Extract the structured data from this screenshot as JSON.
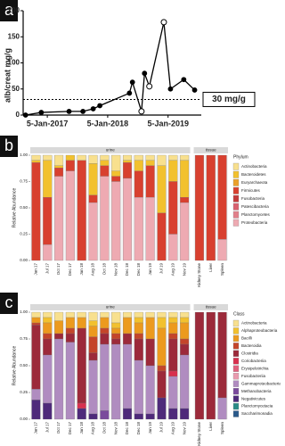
{
  "chart_data": [
    {
      "type": "line",
      "panel_label": "a",
      "y_label": "alb/creat mg/g",
      "x": [
        2016.64,
        2016.9,
        2017.36,
        2017.59,
        2017.76,
        2017.87,
        2018.36,
        2018.41,
        2018.56,
        2018.61,
        2018.69,
        2018.93,
        2019.04,
        2019.26,
        2019.44
      ],
      "values": [
        0,
        5,
        7,
        7,
        12,
        18,
        42,
        63,
        7,
        80,
        55,
        178,
        50,
        68,
        48
      ],
      "markers": [
        "filled",
        "filled",
        "filled",
        "filled",
        "filled",
        "filled",
        "filled",
        "filled",
        "open",
        "filled",
        "open",
        "open",
        "filled",
        "filled",
        "filled"
      ],
      "color": "#000000",
      "xlim": [
        2016.6,
        2019.55
      ],
      "xticks": [
        {
          "value": 2017.0,
          "label": "5-Jan-2017"
        },
        {
          "value": 2018.0,
          "label": "5-Jan-2018"
        },
        {
          "value": 2019.0,
          "label": "5-Jan-2019"
        }
      ],
      "ylim": [
        0,
        200
      ],
      "yticks": [
        0,
        50,
        100,
        150,
        200
      ],
      "threshold": {
        "value": 30,
        "label": "30 mg/g"
      }
    },
    {
      "type": "bar",
      "stacked": true,
      "panel_label": "b",
      "y_label": "Relative Abundance",
      "legend_title": "Phylum",
      "facets": [
        {
          "label": "urine",
          "count": 14
        },
        {
          "label": "tissue",
          "count": 3
        }
      ],
      "categories": [
        "Jan 17",
        "Jul 17",
        "Oct 17",
        "Dec 17",
        "Jan 18",
        "Aug 18",
        "Oct 18",
        "Nov 18",
        "Dec 18",
        "Dec 18",
        "Jan 19",
        "Jul 19",
        "Aug 19",
        "Nov 19",
        "Kidney Stone",
        "Liver",
        "Spleen"
      ],
      "ylim": [
        0,
        1
      ],
      "yticks": [
        {
          "value": 0,
          "label": "0.00"
        },
        {
          "value": 0.25,
          "label": "0.25"
        },
        {
          "value": 0.5,
          "label": "0.50"
        },
        {
          "value": 0.75,
          "label": "0.75"
        },
        {
          "value": 1,
          "label": "1.00"
        }
      ],
      "series": [
        {
          "name": "Actinobacteria",
          "color": "#f8e08e",
          "values": [
            0.05,
            0.05,
            0.1,
            0,
            0.05,
            0.08,
            0.05,
            0.15,
            0.05,
            0.05,
            0.05,
            0.1,
            0.05,
            0.05,
            0,
            0,
            0
          ]
        },
        {
          "name": "Bacteroidetes",
          "color": "#f2c12e",
          "values": [
            0.02,
            0.35,
            0.02,
            0.05,
            0,
            0.3,
            0.05,
            0.05,
            0.02,
            0.1,
            0.05,
            0.45,
            0.2,
            0.35,
            0,
            0,
            0
          ]
        },
        {
          "name": "Euryarchaeota",
          "color": "#eba02a",
          "values": [
            0,
            0,
            0,
            0,
            0,
            0,
            0,
            0,
            0,
            0,
            0,
            0,
            0,
            0,
            0,
            0,
            0
          ]
        },
        {
          "name": "Firmicutes",
          "color": "#d8402f",
          "values": [
            0.93,
            0.45,
            0.08,
            0.1,
            0.95,
            0.07,
            0.1,
            0.05,
            0.15,
            0.25,
            0.3,
            0.45,
            0.5,
            0.05,
            1,
            1,
            0.8
          ]
        },
        {
          "name": "Fusobacteria",
          "color": "#c43a3a",
          "values": [
            0,
            0,
            0,
            0,
            0,
            0,
            0,
            0,
            0,
            0,
            0,
            0,
            0,
            0,
            0,
            0,
            0
          ]
        },
        {
          "name": "Patescibacteria",
          "color": "#d9606e",
          "values": [
            0,
            0,
            0,
            0,
            0,
            0,
            0,
            0,
            0,
            0,
            0,
            0,
            0,
            0,
            0,
            0,
            0
          ]
        },
        {
          "name": "Planctomycetes",
          "color": "#e27f8a",
          "values": [
            0,
            0,
            0,
            0,
            0,
            0,
            0,
            0,
            0,
            0,
            0,
            0,
            0,
            0,
            0,
            0,
            0
          ]
        },
        {
          "name": "Proteobacteria",
          "color": "#eeaab2",
          "values": [
            0,
            0.15,
            0.8,
            0.85,
            0,
            0.55,
            0.8,
            0.75,
            0.78,
            0.6,
            0.6,
            0,
            0.25,
            0.55,
            0,
            0,
            0.2
          ]
        }
      ]
    },
    {
      "type": "bar",
      "stacked": true,
      "panel_label": "c",
      "y_label": "Relative Abundance",
      "legend_title": "Class",
      "facets": [
        {
          "label": "urine",
          "count": 14
        },
        {
          "label": "tissue",
          "count": 3
        }
      ],
      "categories": [
        "Jan 17",
        "Jul 17",
        "Oct 17",
        "Dec 17",
        "Jan 18",
        "Aug 18",
        "Oct 18",
        "Nov 18",
        "Dec 18",
        "Dec 18",
        "Jan 19",
        "Jul 19",
        "Aug 19",
        "Nov 19",
        "Kidney Stone",
        "Liver",
        "Spleen"
      ],
      "ylim": [
        0,
        1
      ],
      "yticks": [
        {
          "value": 0,
          "label": "0.00"
        },
        {
          "value": 0.25,
          "label": "0.25"
        },
        {
          "value": 0.5,
          "label": "0.50"
        },
        {
          "value": 0.75,
          "label": "0.75"
        },
        {
          "value": 1,
          "label": "1.00"
        }
      ],
      "series": [
        {
          "name": "Actinobacteria",
          "color": "#f8e08e",
          "values": [
            0.05,
            0.05,
            0.08,
            0.05,
            0.05,
            0.08,
            0.05,
            0.1,
            0.05,
            0.05,
            0.05,
            0.05,
            0.05,
            0.05,
            0,
            0,
            0
          ]
        },
        {
          "name": "Alphaproteobacteria",
          "color": "#f2c12e",
          "values": [
            0,
            0.05,
            0,
            0,
            0,
            0.05,
            0,
            0.05,
            0,
            0.05,
            0,
            0.1,
            0.05,
            0.05,
            0,
            0,
            0
          ]
        },
        {
          "name": "Bacilli",
          "color": "#ec9a1e",
          "values": [
            0.05,
            0.1,
            0.12,
            0.1,
            0.1,
            0.1,
            0.1,
            0.05,
            0.15,
            0.1,
            0.2,
            0.35,
            0.1,
            0.15,
            0,
            0,
            0
          ]
        },
        {
          "name": "Bacteroidia",
          "color": "#c4452a",
          "values": [
            0.02,
            0.05,
            0,
            0.05,
            0,
            0.15,
            0.05,
            0.05,
            0,
            0.05,
            0,
            0.05,
            0.05,
            0.05,
            0,
            0,
            0
          ]
        },
        {
          "name": "Clostridia",
          "color": "#9c2a3a",
          "values": [
            0.6,
            0.15,
            0.05,
            0.08,
            0.7,
            0.07,
            0.1,
            0.05,
            0.1,
            0.2,
            0.25,
            0.25,
            0.3,
            0.1,
            1,
            1,
            0.8
          ]
        },
        {
          "name": "Coriobacteriia",
          "color": "#d8304e",
          "values": [
            0,
            0,
            0,
            0,
            0.05,
            0,
            0,
            0,
            0,
            0,
            0,
            0,
            0.05,
            0,
            0,
            0,
            0
          ]
        },
        {
          "name": "Erysipelotrichia",
          "color": "#e0607c",
          "values": [
            0,
            0,
            0,
            0,
            0,
            0,
            0,
            0,
            0,
            0,
            0,
            0,
            0,
            0,
            0,
            0,
            0
          ]
        },
        {
          "name": "Fusobacteriia",
          "color": "#e99aae",
          "values": [
            0,
            0,
            0,
            0,
            0,
            0,
            0,
            0,
            0,
            0,
            0,
            0,
            0,
            0,
            0,
            0,
            0
          ]
        },
        {
          "name": "Gammaproteobacteria",
          "color": "#b08cc0",
          "values": [
            0.1,
            0.45,
            0.75,
            0.72,
            0,
            0.5,
            0.62,
            0.7,
            0.6,
            0.5,
            0.45,
            0,
            0.3,
            0.5,
            0,
            0,
            0.2
          ]
        },
        {
          "name": "Methanobacteria",
          "color": "#7a4a9c",
          "values": [
            0,
            0,
            0,
            0,
            0,
            0,
            0.08,
            0,
            0,
            0,
            0,
            0,
            0,
            0,
            0,
            0,
            0
          ]
        },
        {
          "name": "Negativicutes",
          "color": "#4e2a7a",
          "values": [
            0.18,
            0.15,
            0,
            0,
            0.1,
            0.05,
            0,
            0,
            0.1,
            0.05,
            0.05,
            0.2,
            0.1,
            0.1,
            0,
            0,
            0
          ]
        },
        {
          "name": "Planctomycetacia",
          "color": "#2a8a86",
          "values": [
            0,
            0,
            0,
            0,
            0,
            0,
            0,
            0,
            0,
            0,
            0,
            0,
            0,
            0,
            0,
            0,
            0
          ]
        },
        {
          "name": "Saccharimonadia",
          "color": "#2a5a8a",
          "values": [
            0,
            0,
            0,
            0,
            0,
            0,
            0,
            0,
            0,
            0,
            0,
            0,
            0,
            0,
            0,
            0,
            0
          ]
        }
      ]
    }
  ]
}
